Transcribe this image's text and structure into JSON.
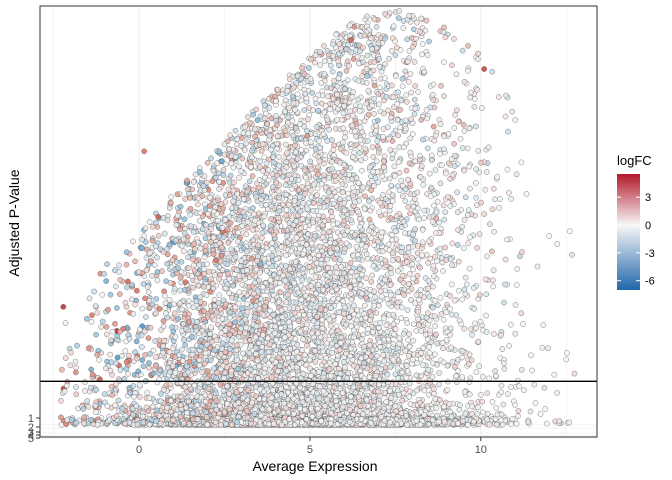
{
  "chart_data": {
    "type": "scatter",
    "title": "",
    "xlabel": "Average Expression",
    "ylabel": "Adjusted P-Value",
    "xlim": [
      -2.9,
      13.4
    ],
    "ylim": [
      0.5,
      18.3
    ],
    "x_ticks": [
      0,
      5,
      10
    ],
    "y_tick_labels": [
      "1",
      "2",
      "3",
      "4",
      "5"
    ],
    "threshold_line_y": 2.8,
    "grid": true,
    "theme": "white background with black panel border",
    "color_scale": {
      "name": "logFC",
      "min": -7,
      "max": 5.5,
      "ticks": [
        3,
        0,
        -3,
        -6
      ],
      "low": "#2166ac",
      "mid": "#f7f7f7",
      "high": "#b2182b"
    },
    "point_style": {
      "outline": "#333333",
      "approx_point_count": 9000
    },
    "notable_points": [
      {
        "x": 7.9,
        "y": 17.9,
        "logFC": 0.2
      },
      {
        "x": 10.1,
        "y": 15.7,
        "logFC": 4.5
      },
      {
        "x": 6.2,
        "y": 16.9,
        "logFC": 3.5
      },
      {
        "x": 0.15,
        "y": 12.3,
        "logFC": 3.0
      },
      {
        "x": 12.6,
        "y": 9.0,
        "logFC": 0.0
      },
      {
        "x": 12.5,
        "y": 3.7,
        "logFC": 0.0
      },
      {
        "x": 12.0,
        "y": 8.8,
        "logFC": 0.0
      },
      {
        "x": 11.6,
        "y": 1.9,
        "logFC": 0.0
      }
    ]
  }
}
